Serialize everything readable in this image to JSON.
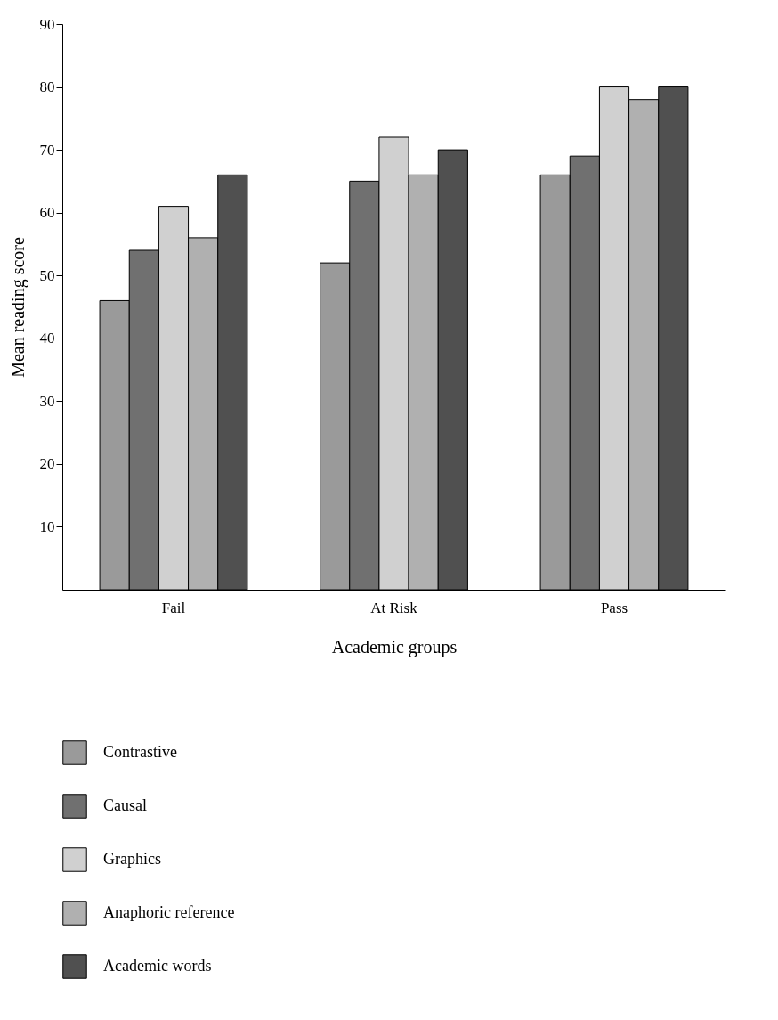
{
  "chart_data": {
    "type": "bar",
    "xlabel": "Academic groups",
    "ylabel": "Mean reading score",
    "categories": [
      "Fail",
      "At Risk",
      "Pass"
    ],
    "series": [
      {
        "name": "Contrastive",
        "color": "#9a9a9a",
        "values": [
          46,
          52,
          66
        ]
      },
      {
        "name": "Causal",
        "color": "#707070",
        "values": [
          54,
          65,
          69
        ]
      },
      {
        "name": "Graphics",
        "color": "#d0d0d0",
        "values": [
          61,
          72,
          80
        ]
      },
      {
        "name": "Anaphoric reference",
        "color": "#b0b0b0",
        "values": [
          56,
          66,
          78
        ]
      },
      {
        "name": "Academic words",
        "color": "#505050",
        "values": [
          66,
          70,
          80
        ]
      }
    ],
    "ylim": [
      0,
      90
    ],
    "yticks": [
      10,
      20,
      30,
      40,
      50,
      60,
      70,
      80,
      90
    ],
    "legend": "bottom left"
  }
}
